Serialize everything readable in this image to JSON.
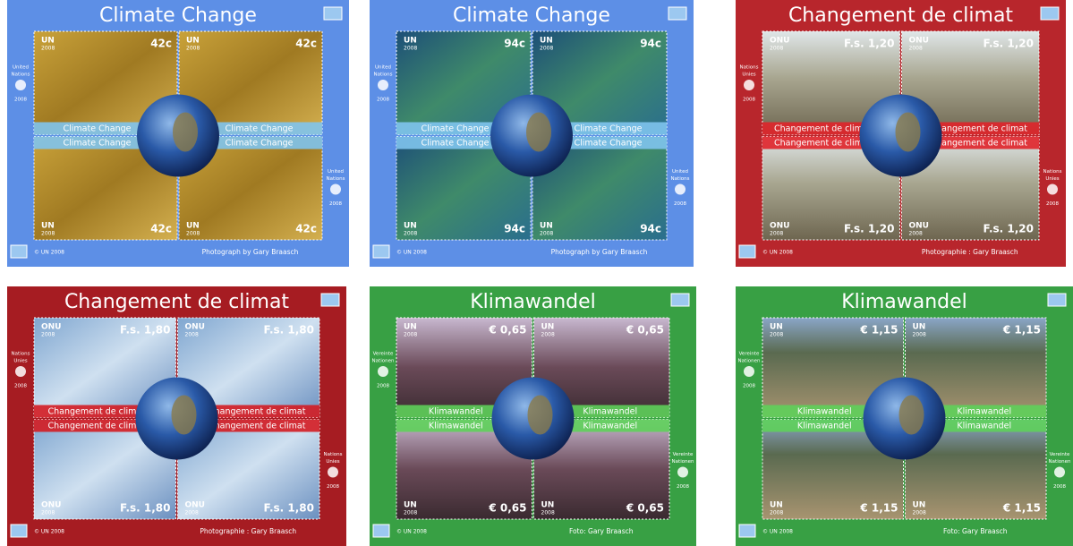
{
  "sheets": [
    {
      "title": "Climate Change",
      "un": "UN",
      "year": "2008",
      "denomination": "42c",
      "side": [
        "United",
        "Nations",
        "2008"
      ],
      "strip": "Climate Change",
      "copyright": "© UN 2008",
      "credit": "Photograph by Gary Braasch"
    },
    {
      "title": "Climate Change",
      "un": "UN",
      "year": "2008",
      "denomination": "94c",
      "side": [
        "United",
        "Nations",
        "2008"
      ],
      "strip": "Climate Change",
      "copyright": "© UN 2008",
      "credit": "Photograph by Gary Braasch"
    },
    {
      "title": "Changement de climat",
      "un": "ONU",
      "year": "2008",
      "denomination": "F.s. 1,20",
      "side": [
        "Nations",
        "Unies",
        "2008"
      ],
      "strip": "Changement de climat",
      "copyright": "© UN 2008",
      "credit": "Photographie : Gary Braasch"
    },
    {
      "title": "Changement de climat",
      "un": "ONU",
      "year": "2008",
      "denomination": "F.s. 1,80",
      "side": [
        "Nations",
        "Unies",
        "2008"
      ],
      "strip": "Changement de climat",
      "copyright": "© UN 2008",
      "credit": "Photographie : Gary Braasch"
    },
    {
      "title": "Klimawandel",
      "un": "UN",
      "year": "2008",
      "denomination": "€ 0,65",
      "side": [
        "Vereinte",
        "Nationen",
        "2008"
      ],
      "strip": "Klimawandel",
      "copyright": "© UN 2008",
      "credit": "Foto: Gary Braasch"
    },
    {
      "title": "Klimawandel",
      "un": "UN",
      "year": "2008",
      "denomination": "€ 1,15",
      "side": [
        "Vereinte",
        "Nationen",
        "2008"
      ],
      "strip": "Klimawandel",
      "copyright": "© UN 2008",
      "credit": "Foto: Gary Braasch"
    }
  ]
}
